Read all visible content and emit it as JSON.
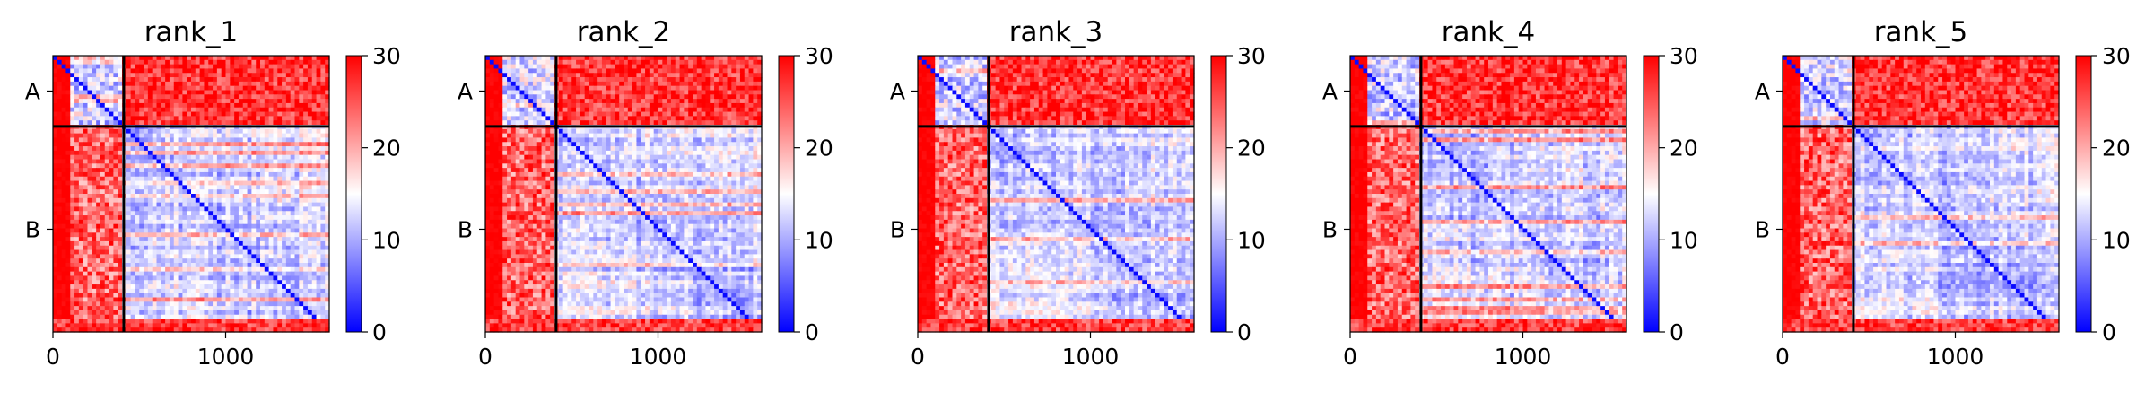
{
  "chart_data": {
    "type": "heatmap",
    "title": "",
    "xlabel": "",
    "ylabel": "",
    "x_ticks": [
      0,
      1000
    ],
    "y_ticks": [
      "A",
      "B"
    ],
    "xlim": [
      0,
      1600
    ],
    "ylim": [
      1600,
      0
    ],
    "chain_boundary": 410,
    "colorbar": {
      "min": 0,
      "max": 30,
      "ticks": [
        0,
        10,
        20,
        30
      ],
      "colormap": "bwr"
    },
    "colors": {
      "low": "#0000ff",
      "mid": "#ffffff",
      "high": "#ff0000",
      "divider": "#000000"
    },
    "grid": false,
    "panels": [
      {
        "name": "rank_1"
      },
      {
        "name": "rank_2"
      },
      {
        "name": "rank_3"
      },
      {
        "name": "rank_4"
      },
      {
        "name": "rank_5"
      }
    ]
  }
}
